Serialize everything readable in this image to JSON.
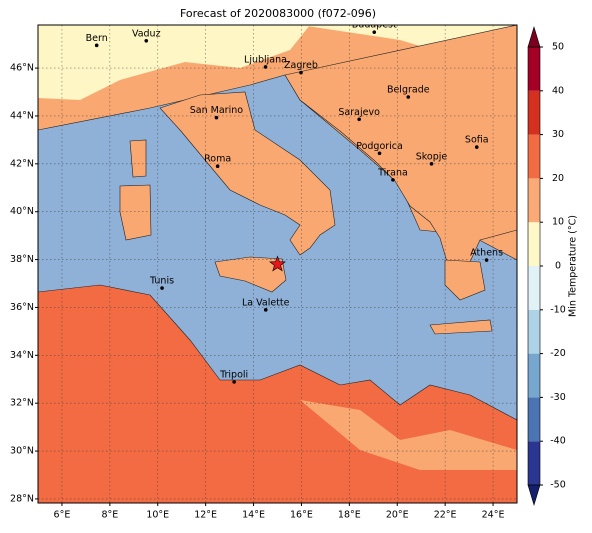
{
  "map": {
    "title": "Forecast of 2020083000 (f072-096)",
    "lonlim": [
      5,
      25
    ],
    "latlim": [
      27.83,
      47.8
    ],
    "lon_ticks": [
      {
        "value": 6,
        "label": "6°E"
      },
      {
        "value": 8,
        "label": "8°E"
      },
      {
        "value": 10,
        "label": "10°E"
      },
      {
        "value": 12,
        "label": "12°E"
      },
      {
        "value": 14,
        "label": "14°E"
      },
      {
        "value": 16,
        "label": "16°E"
      },
      {
        "value": 18,
        "label": "18°E"
      },
      {
        "value": 20,
        "label": "20°E"
      },
      {
        "value": 22,
        "label": "22°E"
      },
      {
        "value": 24,
        "label": "24°E"
      }
    ],
    "lat_ticks": [
      {
        "value": 28,
        "label": "28°N"
      },
      {
        "value": 30,
        "label": "30°N"
      },
      {
        "value": 32,
        "label": "32°N"
      },
      {
        "value": 34,
        "label": "34°N"
      },
      {
        "value": 36,
        "label": "36°N"
      },
      {
        "value": 38,
        "label": "38°N"
      },
      {
        "value": 40,
        "label": "40°N"
      },
      {
        "value": 42,
        "label": "42°N"
      },
      {
        "value": 44,
        "label": "44°N"
      },
      {
        "value": 46,
        "label": "46°N"
      }
    ],
    "grid": true,
    "cities": [
      {
        "name": "Bern",
        "lon": 7.45,
        "lat": 46.95
      },
      {
        "name": "Vaduz",
        "lon": 9.52,
        "lat": 47.14
      },
      {
        "name": "Budapest",
        "lon": 19.04,
        "lat": 47.5
      },
      {
        "name": "Ljubljana",
        "lon": 14.5,
        "lat": 46.05
      },
      {
        "name": "Zagreb",
        "lon": 15.98,
        "lat": 45.81
      },
      {
        "name": "San Marino",
        "lon": 12.45,
        "lat": 43.93
      },
      {
        "name": "Belgrade",
        "lon": 20.46,
        "lat": 44.79
      },
      {
        "name": "Sarajevo",
        "lon": 18.41,
        "lat": 43.86
      },
      {
        "name": "Roma",
        "lon": 12.5,
        "lat": 41.9
      },
      {
        "name": "Podgorica",
        "lon": 19.26,
        "lat": 42.44
      },
      {
        "name": "Sofia",
        "lon": 23.32,
        "lat": 42.7
      },
      {
        "name": "Skopje",
        "lon": 21.43,
        "lat": 42.0
      },
      {
        "name": "Tirana",
        "lon": 19.82,
        "lat": 41.33
      },
      {
        "name": "Athens",
        "lon": 23.73,
        "lat": 37.98
      },
      {
        "name": "Tunis",
        "lon": 10.18,
        "lat": 36.81
      },
      {
        "name": "La Valette",
        "lon": 14.51,
        "lat": 35.9
      },
      {
        "name": "Tripoli",
        "lon": 13.19,
        "lat": 32.89
      }
    ],
    "marker": {
      "lon": 15.0,
      "lat": 37.8,
      "color": "#e8151b"
    },
    "colorbar": {
      "label": "Min Temperature (°C)",
      "lim": [
        -50,
        50
      ],
      "ticks": [
        -50,
        -40,
        -30,
        -20,
        -10,
        0,
        10,
        20,
        30,
        40,
        50
      ],
      "colors": [
        "#2b3690",
        "#4a74b2",
        "#77a7cf",
        "#aed3e6",
        "#e1f2f7",
        "#fef7c8",
        "#f9aa76",
        "#f26c43",
        "#d3301f",
        "#a50026"
      ],
      "under_color": "#14206b",
      "over_color": "#7c0020"
    }
  }
}
